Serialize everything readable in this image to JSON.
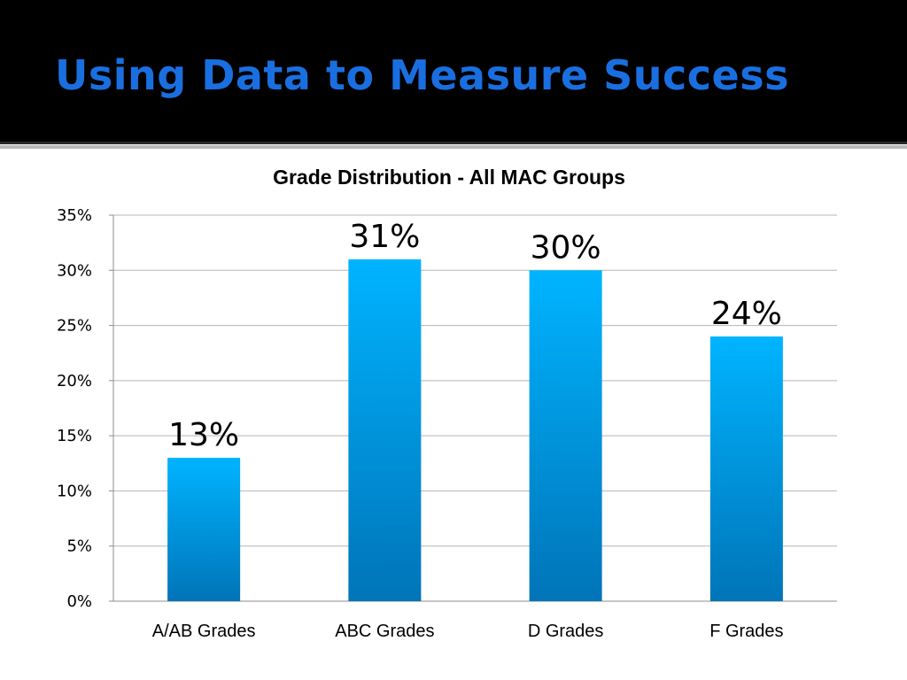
{
  "slide": {
    "title": "Using Data to Measure Success"
  },
  "colors": {
    "header_background": "#000000",
    "title_color": "#1a6fe0",
    "bar_top": "#00b4ff",
    "bar_bottom": "#0074b8"
  },
  "chart_data": {
    "type": "bar",
    "title": "Grade Distribution - All MAC Groups",
    "categories": [
      "A/AB Grades",
      "ABC Grades",
      "D Grades",
      "F Grades"
    ],
    "values": [
      13,
      31,
      30,
      24
    ],
    "data_labels": [
      "13%",
      "31%",
      "30%",
      "24%"
    ],
    "xlabel": "",
    "ylabel": "",
    "ylim": [
      0,
      35
    ],
    "y_ticks": [
      0,
      5,
      10,
      15,
      20,
      25,
      30,
      35
    ],
    "y_tick_labels": [
      "0%",
      "5%",
      "10%",
      "15%",
      "20%",
      "25%",
      "30%",
      "35%"
    ],
    "grid": true,
    "legend": "none"
  }
}
